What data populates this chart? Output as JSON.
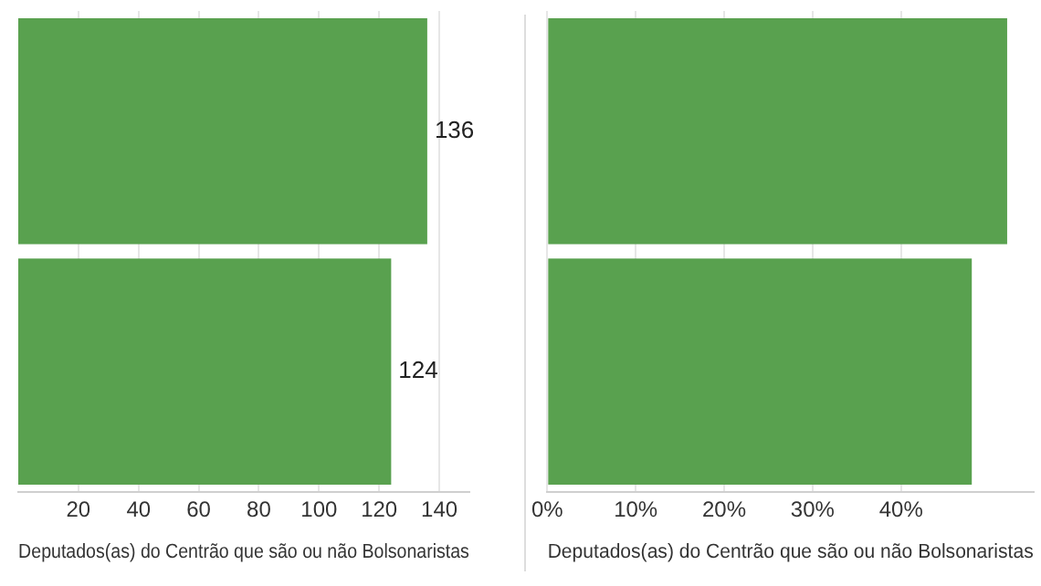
{
  "chart_data": [
    {
      "type": "bar",
      "orientation": "horizontal",
      "categories": [
        null,
        null
      ],
      "values": [
        136,
        124
      ],
      "color": "#59a14f",
      "value_labels": [
        "136",
        "124"
      ],
      "xlabel": "Deputados(as) do Centrão que são ou não Bolsonaristas",
      "xlim": [
        0,
        150
      ],
      "xticks": [
        20,
        40,
        60,
        80,
        100,
        120,
        140
      ],
      "grid": "x"
    },
    {
      "type": "bar",
      "orientation": "horizontal",
      "categories": [
        null,
        null
      ],
      "values": [
        52,
        48
      ],
      "color": "#59a14f",
      "xlabel": "Deputados(as) do Centrão que são ou não Bolsonaristas",
      "xlim": [
        0,
        55
      ],
      "xticks": [
        {
          "value": 0,
          "label": "0%"
        },
        {
          "value": 10,
          "label": "10%"
        },
        {
          "value": 20,
          "label": "20%"
        },
        {
          "value": 30,
          "label": "30%"
        },
        {
          "value": 40,
          "label": "40%"
        }
      ],
      "grid": "x"
    }
  ]
}
